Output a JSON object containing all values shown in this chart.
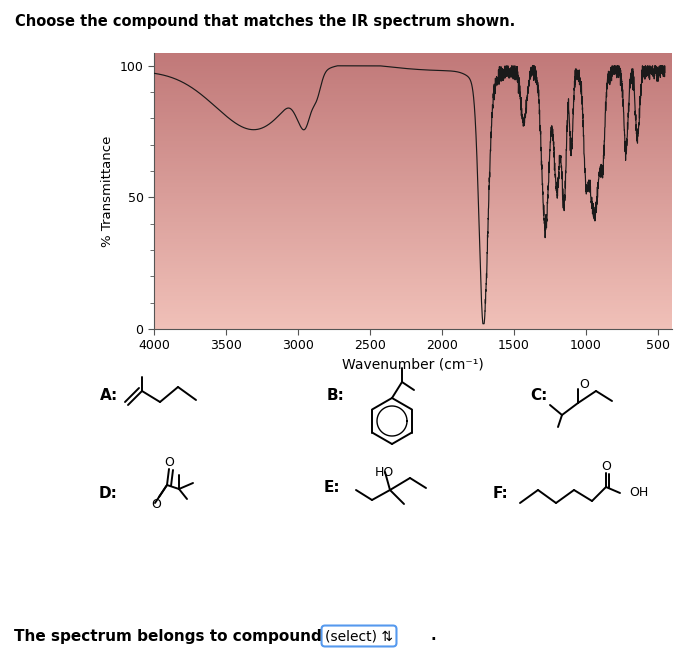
{
  "title": "Choose the compound that matches the IR spectrum shown.",
  "title_bg": "#cce8f4",
  "xlabel": "Wavenumber (cm⁻¹)",
  "ylabel": "% Transmittance",
  "xlim": [
    4000,
    400
  ],
  "ylim": [
    0,
    105
  ],
  "yticks": [
    0,
    50,
    100
  ],
  "xticks": [
    4000,
    3500,
    3000,
    2500,
    2000,
    1500,
    1000,
    500
  ],
  "spectrum_color": "#1a1a1a",
  "footer_text": "The spectrum belongs to compound",
  "select_box_text": "(select) ⇅",
  "fig_width": 7.0,
  "fig_height": 6.58,
  "fig_dpi": 100
}
